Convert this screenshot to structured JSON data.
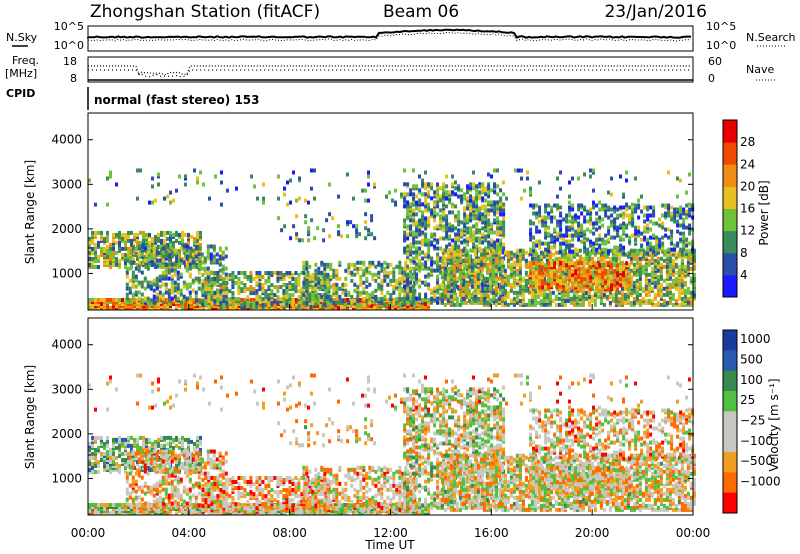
{
  "header": {
    "title": "Zhongshan Station (fitACF)",
    "beam": "Beam 06",
    "date": "23/Jan/2016"
  },
  "summary_panels": {
    "nsky_label": "N.Sky",
    "freq_label_1": "Freq.",
    "freq_label_2": "[MHz]",
    "cpid_label": "CPID",
    "nsearch_label": "N.Search",
    "nave_label": "Nave",
    "noise_ticks": [
      "10^5",
      "10^0"
    ],
    "freq_ticks": [
      "18",
      "8"
    ],
    "nave_ticks": [
      "60",
      "0"
    ],
    "cpid_text": "normal (fast stereo) 153"
  },
  "colors": {
    "power": [
      "#1a1aff",
      "#2a4fa8",
      "#3b8a5c",
      "#6ec23a",
      "#e8c020",
      "#f08c10",
      "#f04a00",
      "#e80000"
    ],
    "velocity": [
      "#ff0000",
      "#ff6a00",
      "#f0a020",
      "#c8c8c0",
      "#c8c8c0",
      "#4fc040",
      "#3a8a50",
      "#2a5ab0",
      "#1a3aa0"
    ]
  },
  "chart_data": [
    {
      "type": "heatmap",
      "name": "power",
      "ylabel": "Slant Range [km]",
      "xlim": [
        "00:00",
        "00:00"
      ],
      "ylim": [
        180,
        4600
      ],
      "y_ticks": [
        "4000",
        "3000",
        "2000",
        "1000"
      ],
      "colorbar_label": "Power [dB]",
      "colorbar_ticks": [
        "28",
        "24",
        "20",
        "16",
        "12",
        "8",
        "4"
      ],
      "colorbar_range": [
        0,
        32
      ]
    },
    {
      "type": "heatmap",
      "name": "velocity",
      "ylabel": "Slant Range [km]",
      "xlabel": "Time UT",
      "x_ticks": [
        "00:00",
        "04:00",
        "08:00",
        "12:00",
        "16:00",
        "20:00",
        "00:00"
      ],
      "xlim": [
        "00:00",
        "00:00"
      ],
      "ylim": [
        180,
        4600
      ],
      "y_ticks": [
        "4000",
        "3000",
        "2000",
        "1000"
      ],
      "colorbar_label": "Velocity [m s⁻¹]",
      "colorbar_ticks": [
        "1000",
        "500",
        "100",
        "25",
        "−25",
        "−100",
        "−500",
        "−1000"
      ]
    }
  ]
}
